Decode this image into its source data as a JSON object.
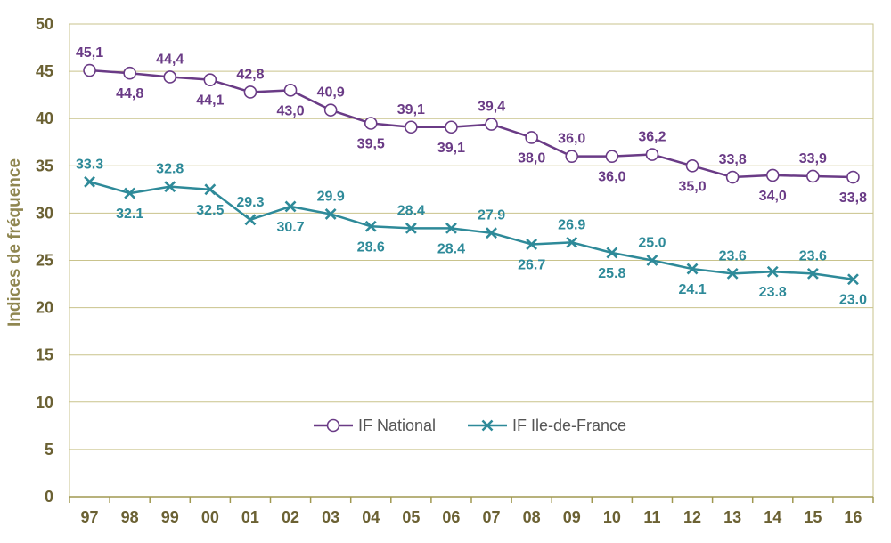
{
  "chart_data": {
    "type": "line",
    "ylabel": "Indices de fréquence",
    "xlabel": "",
    "ylim": [
      0,
      50
    ],
    "yticks": [
      "0",
      "5",
      "10",
      "15",
      "20",
      "25",
      "30",
      "35",
      "40",
      "45",
      "50"
    ],
    "categories": [
      "97",
      "98",
      "99",
      "00",
      "01",
      "02",
      "03",
      "04",
      "05",
      "06",
      "07",
      "08",
      "09",
      "10",
      "11",
      "12",
      "13",
      "14",
      "15",
      "16"
    ],
    "grid": true,
    "legend_position": "center",
    "series": [
      {
        "name": "IF National",
        "color": "#6a3b86",
        "marker": "open-circle",
        "values": [
          45.1,
          44.8,
          44.4,
          44.1,
          42.8,
          43.0,
          40.9,
          39.5,
          39.1,
          39.1,
          39.4,
          38.0,
          36.0,
          36.0,
          36.2,
          35.0,
          33.8,
          34.0,
          33.9,
          33.8
        ],
        "labels": [
          "45,1",
          "44,8",
          "44,4",
          "44,1",
          "42,8",
          "43,0",
          "40,9",
          "39,5",
          "39,1",
          "39,1",
          "39,4",
          "38,0",
          "36,0",
          "36,0",
          "36,2",
          "35,0",
          "33,8",
          "34,0",
          "33,9",
          "33,8"
        ],
        "label_pos": [
          "above",
          "below",
          "above",
          "below",
          "above",
          "below",
          "above",
          "below",
          "above",
          "below",
          "above",
          "below",
          "above",
          "below",
          "above",
          "below",
          "above",
          "below",
          "above",
          "below"
        ]
      },
      {
        "name": "IF Ile-de-France",
        "color": "#2e8a99",
        "marker": "x",
        "values": [
          33.3,
          32.1,
          32.8,
          32.5,
          29.3,
          30.7,
          29.9,
          28.6,
          28.4,
          28.4,
          27.9,
          26.7,
          26.9,
          25.8,
          25.0,
          24.1,
          23.6,
          23.8,
          23.6,
          23.0
        ],
        "labels": [
          "33.3",
          "32.1",
          "32.8",
          "32.5",
          "29.3",
          "30.7",
          "29.9",
          "28.6",
          "28.4",
          "28.4",
          "27.9",
          "26.7",
          "26.9",
          "25.8",
          "25.0",
          "24.1",
          "23.6",
          "23.8",
          "23.6",
          "23.0"
        ],
        "label_pos": [
          "above",
          "below",
          "above",
          "below",
          "above",
          "below",
          "above",
          "below",
          "above",
          "below",
          "above",
          "below",
          "above",
          "below",
          "above",
          "below",
          "above",
          "below",
          "above",
          "below"
        ]
      }
    ],
    "colors": {
      "grid": "#c9c38c",
      "axis": "#a09850",
      "plot_border": "#c9c38c",
      "tick_text": "#6b6133",
      "ylabel_text": "#8f8650"
    }
  }
}
